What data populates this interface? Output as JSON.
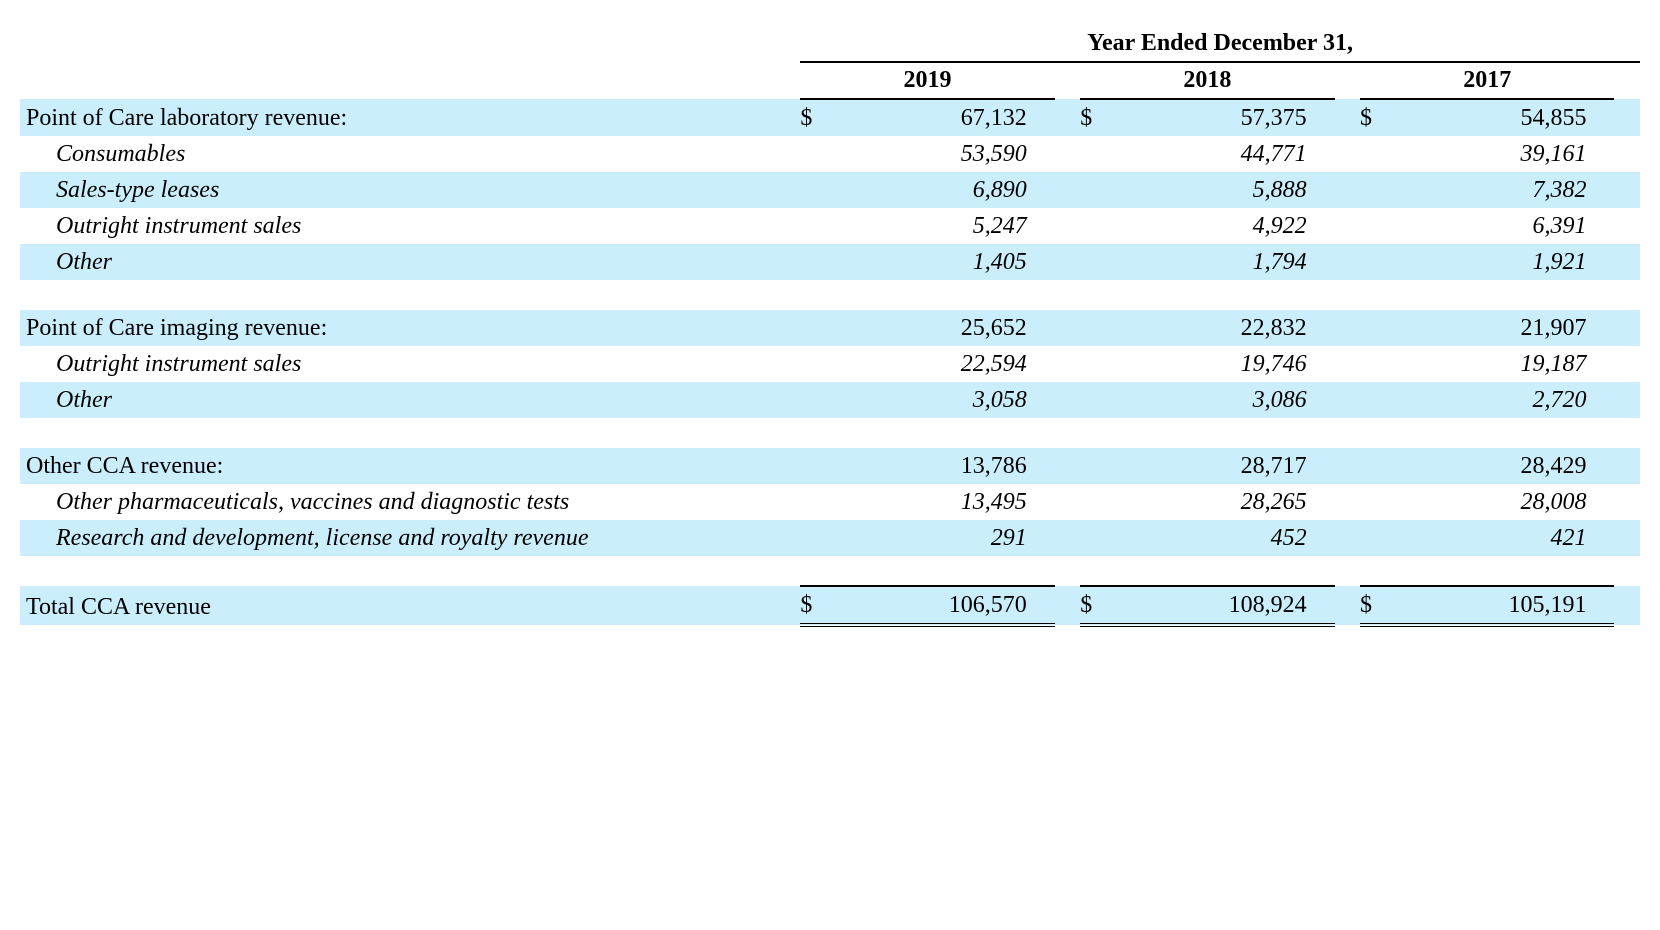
{
  "colors": {
    "shaded_row_bg": "#caeefb",
    "background": "#ffffff",
    "text": "#000000",
    "rule": "#000000"
  },
  "typography": {
    "family": "Times New Roman",
    "base_size_pt": 18
  },
  "header": {
    "super": "Year Ended December 31,",
    "years": [
      "2019",
      "2018",
      "2017"
    ]
  },
  "currency_symbol": "$",
  "sections": [
    {
      "label": "Point of Care laboratory revenue:",
      "show_currency": true,
      "shaded": true,
      "values": [
        "67,132",
        "57,375",
        "54,855"
      ],
      "subrows": [
        {
          "label": "Consumables",
          "shaded": false,
          "values": [
            "53,590",
            "44,771",
            "39,161"
          ]
        },
        {
          "label": "Sales-type leases",
          "shaded": true,
          "values": [
            "6,890",
            "5,888",
            "7,382"
          ]
        },
        {
          "label": "Outright instrument sales",
          "shaded": false,
          "values": [
            "5,247",
            "4,922",
            "6,391"
          ]
        },
        {
          "label": "Other",
          "shaded": true,
          "values": [
            "1,405",
            "1,794",
            "1,921"
          ]
        }
      ]
    },
    {
      "label": "Point of Care imaging revenue:",
      "show_currency": false,
      "shaded": true,
      "values": [
        "25,652",
        "22,832",
        "21,907"
      ],
      "subrows": [
        {
          "label": "Outright instrument sales",
          "shaded": false,
          "values": [
            "22,594",
            "19,746",
            "19,187"
          ]
        },
        {
          "label": "Other",
          "shaded": true,
          "values": [
            "3,058",
            "3,086",
            "2,720"
          ]
        }
      ]
    },
    {
      "label": "Other CCA revenue:",
      "show_currency": false,
      "shaded": true,
      "values": [
        "13,786",
        "28,717",
        "28,429"
      ],
      "subrows": [
        {
          "label": "Other pharmaceuticals, vaccines and diagnostic tests",
          "shaded": false,
          "values": [
            "13,495",
            "28,265",
            "28,008"
          ]
        },
        {
          "label": "Research and development, license and royalty revenue",
          "shaded": true,
          "values": [
            "291",
            "452",
            "421"
          ]
        }
      ]
    }
  ],
  "total": {
    "label": "Total CCA revenue",
    "values": [
      "106,570",
      "108,924",
      "105,191"
    ]
  }
}
